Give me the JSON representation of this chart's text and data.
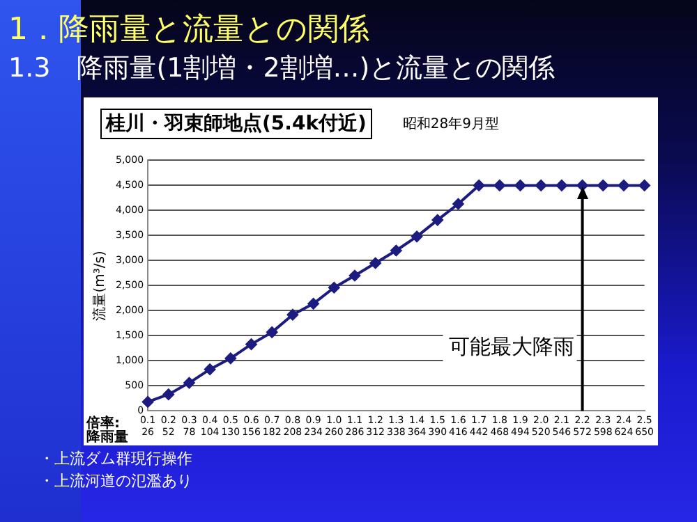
{
  "chart_data": {
    "type": "line",
    "title": "桂川・羽束師地点(5.4k付近)",
    "subtitle": "昭和28年9月型",
    "ylabel": "流量(m³/s)",
    "categories": [
      "0.1\n26",
      "0.2\n52",
      "0.3\n78",
      "0.4\n104",
      "0.5\n130",
      "0.6\n156",
      "0.7\n182",
      "0.8\n208",
      "0.9\n234",
      "1.0\n260",
      "1.1\n286",
      "1.2\n312",
      "1.3\n338",
      "1.4\n364",
      "1.5\n390",
      "1.6\n416",
      "1.7\n442",
      "1.8\n468",
      "1.9\n494",
      "2.0\n520",
      "2.1\n546",
      "2.2\n572",
      "2.3\n598",
      "2.4\n624",
      "2.5\n650"
    ],
    "series": [
      {
        "color": "#1c1c80",
        "values": [
          180,
          330,
          560,
          830,
          1050,
          1330,
          1570,
          1920,
          2140,
          2460,
          2700,
          2950,
          3200,
          3480,
          3810,
          4130,
          4500,
          4500,
          4500,
          4500,
          4500,
          4500,
          4500,
          4500,
          4500
        ]
      }
    ],
    "ylim": [
      0,
      5000
    ],
    "yticks": [
      0,
      500,
      {
        "value": 1000,
        "label": "1,000"
      },
      {
        "value": 1500,
        "label": "1,500"
      },
      {
        "value": 2000,
        "label": "2,000"
      },
      {
        "value": 2500,
        "label": "2,500"
      },
      {
        "value": 3000,
        "label": "3,000"
      },
      {
        "value": 3500,
        "label": "3,500"
      },
      {
        "value": 4000,
        "label": "4,000"
      },
      {
        "value": 4500,
        "label": "4,500"
      },
      {
        "value": 5000,
        "label": "5,000"
      }
    ],
    "grid": "y",
    "legend": false,
    "marker": "diamond",
    "line_style": "solid",
    "ref_lines": [
      {
        "axis": "x",
        "value": "2.2\n572",
        "label": "可能最大降雨",
        "color": "#000000"
      }
    ],
    "annotations": [
      "1．降雨量と流量との関係",
      "1.3　降雨量(1割増・2割増…)と流量との関係",
      "倍率:",
      "降雨量",
      "・上流ダム群現行操作",
      "・上流河道の氾濫あり"
    ]
  }
}
